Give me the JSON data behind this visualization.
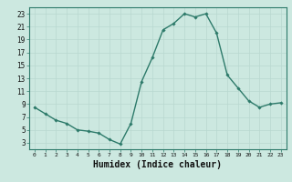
{
  "x": [
    0,
    1,
    2,
    3,
    4,
    5,
    6,
    7,
    8,
    9,
    10,
    11,
    12,
    13,
    14,
    15,
    16,
    17,
    18,
    19,
    20,
    21,
    22,
    23
  ],
  "y": [
    8.5,
    7.5,
    6.5,
    6.0,
    5.0,
    4.8,
    4.5,
    3.5,
    2.8,
    6.0,
    12.5,
    16.2,
    20.5,
    21.5,
    23.0,
    22.5,
    23.0,
    20.0,
    13.5,
    11.5,
    9.5,
    8.5,
    9.0,
    9.2
  ],
  "line_color": "#2d7a6a",
  "marker": "D",
  "marker_size": 1.8,
  "linewidth": 1.0,
  "xlabel": "Humidex (Indice chaleur)",
  "xlabel_fontsize": 7,
  "xlim": [
    -0.5,
    23.5
  ],
  "ylim": [
    2,
    24
  ],
  "yticks": [
    3,
    5,
    7,
    9,
    11,
    13,
    15,
    17,
    19,
    21,
    23
  ],
  "xticks": [
    0,
    1,
    2,
    3,
    4,
    5,
    6,
    7,
    8,
    9,
    10,
    11,
    12,
    13,
    14,
    15,
    16,
    17,
    18,
    19,
    20,
    21,
    22,
    23
  ],
  "xtick_fontsize": 4.5,
  "ytick_fontsize": 5.5,
  "grid_color": "#b8d8d0",
  "bg_color": "#cce8e0",
  "spine_color": "#2d7a6a",
  "label_color": "#111111"
}
